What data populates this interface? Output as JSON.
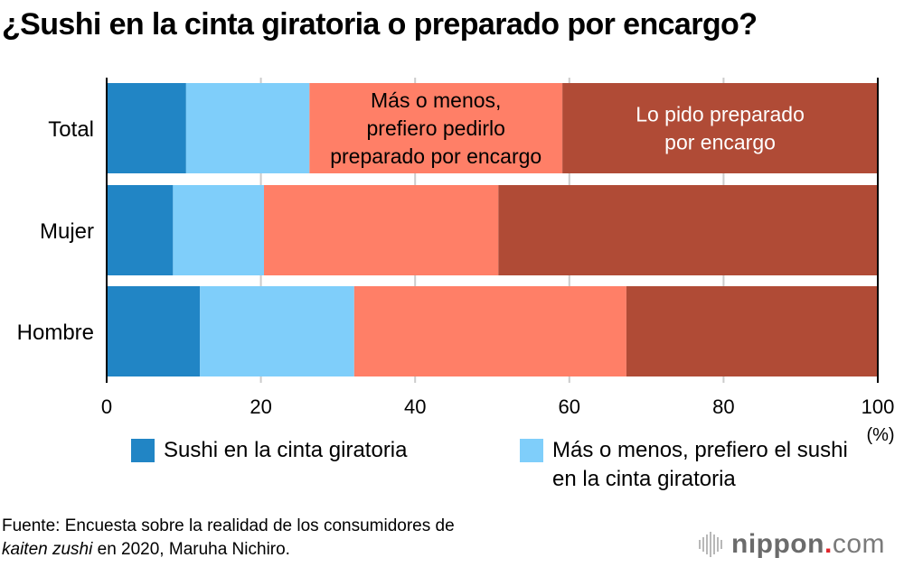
{
  "title": "¿Sushi en la cinta giratoria o preparado por encargo?",
  "chart_data": {
    "type": "bar",
    "orientation": "horizontal",
    "stacked": true,
    "title": "¿Sushi en la cinta giratoria o preparado por encargo?",
    "categories": [
      "Total",
      "Mujer",
      "Hombre"
    ],
    "series": [
      {
        "name": "Sushi en la cinta giratoria",
        "color": "#2185c5",
        "values": [
          10.3,
          8.6,
          12.1
        ]
      },
      {
        "name": "Más o menos, prefiero el sushi en la cinta giratoria",
        "color": "#7fcefa",
        "values": [
          16.0,
          11.8,
          20.0
        ]
      },
      {
        "name": "Más o menos, prefiero pedirlo preparado por encargo",
        "color": "#ff7f67",
        "values": [
          32.8,
          30.4,
          35.3
        ]
      },
      {
        "name": "Lo pido preparado por encargo",
        "color": "#b04b36",
        "values": [
          40.9,
          49.2,
          32.6
        ]
      }
    ],
    "xlim": [
      0,
      100
    ],
    "xticks": [
      0,
      20,
      40,
      60,
      80,
      100
    ],
    "xtick_labels": [
      "0",
      "20",
      "40",
      "60",
      "80",
      "100"
    ],
    "xlabel": "(%)",
    "ylabel": "",
    "grid": true,
    "annotations": [
      {
        "series_index": 2,
        "category": "Total",
        "lines": [
          "Más o menos,",
          "prefiero pedirlo",
          "preparado por encargo"
        ],
        "color": "#000000"
      },
      {
        "series_index": 3,
        "category": "Total",
        "lines": [
          "Lo pido preparado",
          "por encargo"
        ],
        "color": "#ffffff"
      }
    ],
    "legend": {
      "placement": "bottom",
      "entries": [
        {
          "label": "Sushi en la cinta giratoria",
          "color": "#2185c5"
        },
        {
          "label": "Más o menos, prefiero el sushi en la cinta giratoria",
          "color": "#7fcefa"
        }
      ]
    }
  },
  "source": {
    "line1": "Fuente: Encuesta sobre la realidad de los consumidores de",
    "italic": "kaiten zushi",
    "line2_rest": " en 2020, Maruha Nichiro."
  },
  "logo": {
    "word": "nippon",
    "dot": ".",
    "suffix": "com",
    "icon": "soundwave-bars-icon"
  }
}
